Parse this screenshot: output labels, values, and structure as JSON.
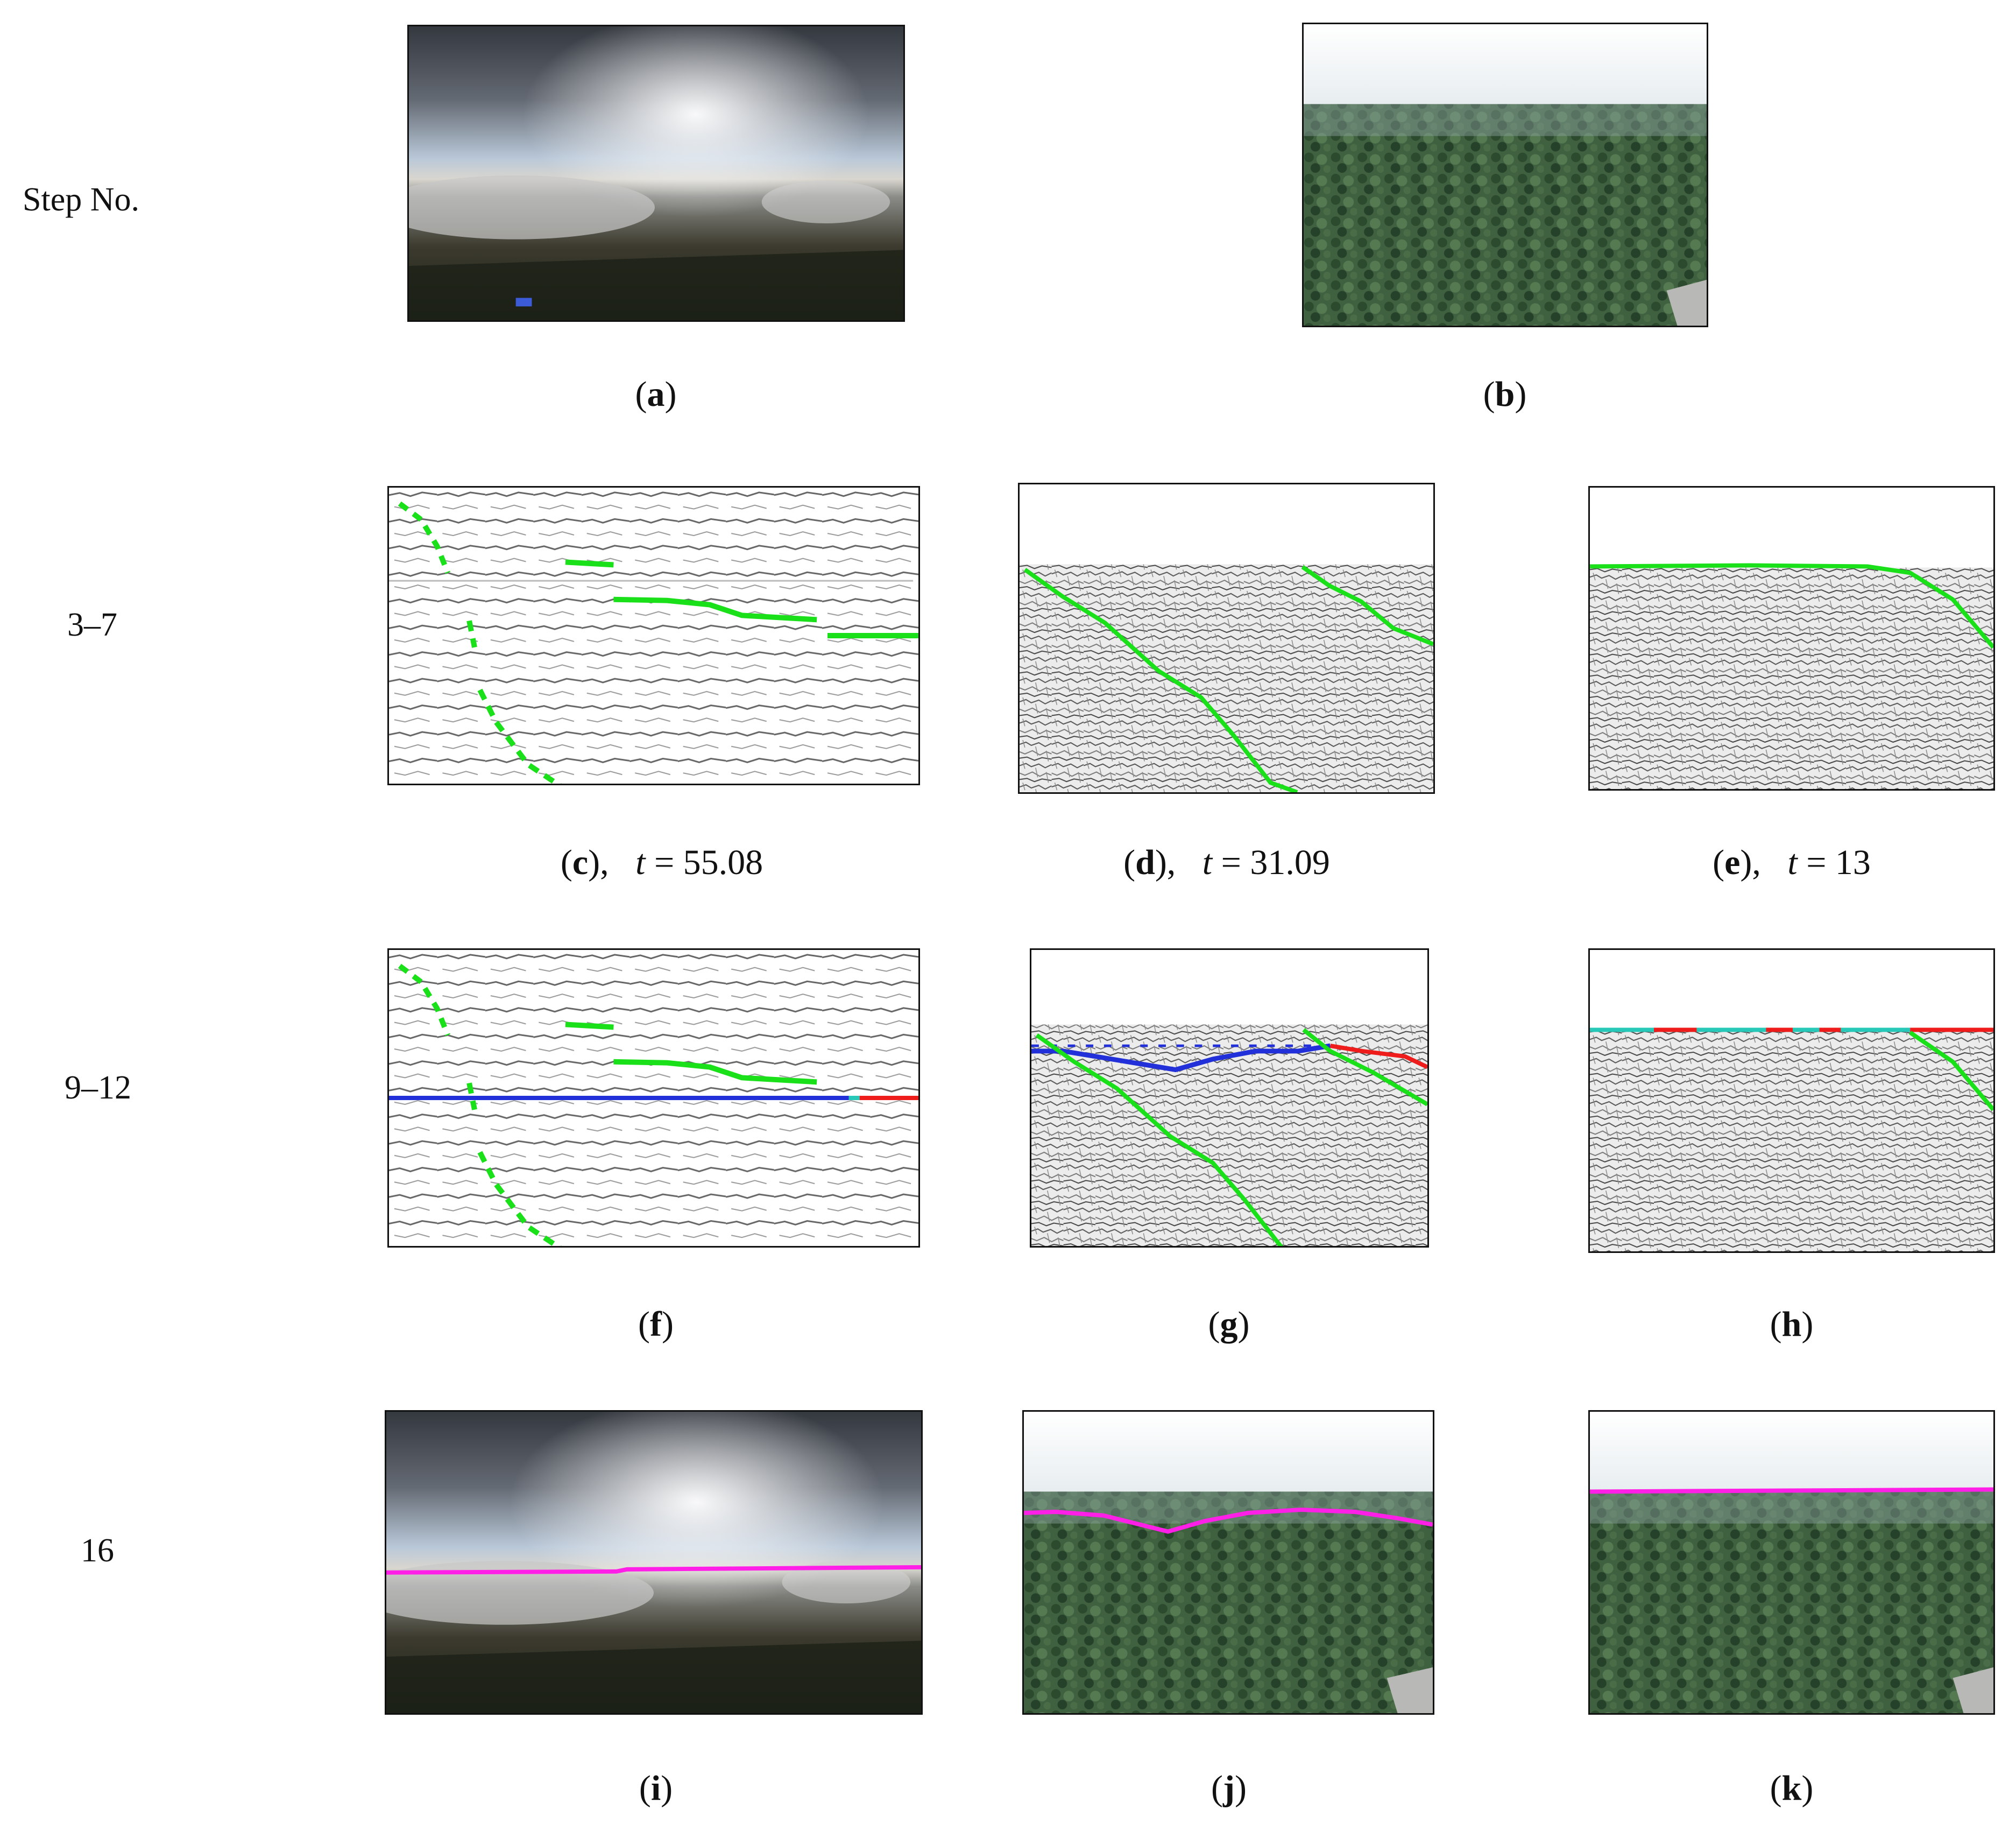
{
  "row_labels": {
    "r1": "Step No.",
    "r2": "3–7",
    "r3": "9–12",
    "r4": "16"
  },
  "captions": {
    "a": "a",
    "b": "b",
    "c": "c",
    "d": "d",
    "e": "e",
    "f": "f",
    "g": "g",
    "h": "h",
    "i": "i",
    "j": "j",
    "k": "k",
    "c_t": "55.08",
    "d_t": "31.09",
    "e_t": "13",
    "t_symbol": "t"
  },
  "colors": {
    "detected_line": "#19e019",
    "candidate_line": "#2130d8",
    "rejected_line": "#ef1c1c",
    "merged_line": "#27c8b8",
    "horizon_line": "#ff1fe6",
    "forest": "#3d5f3a",
    "sky_cloud": "#5a6270"
  }
}
